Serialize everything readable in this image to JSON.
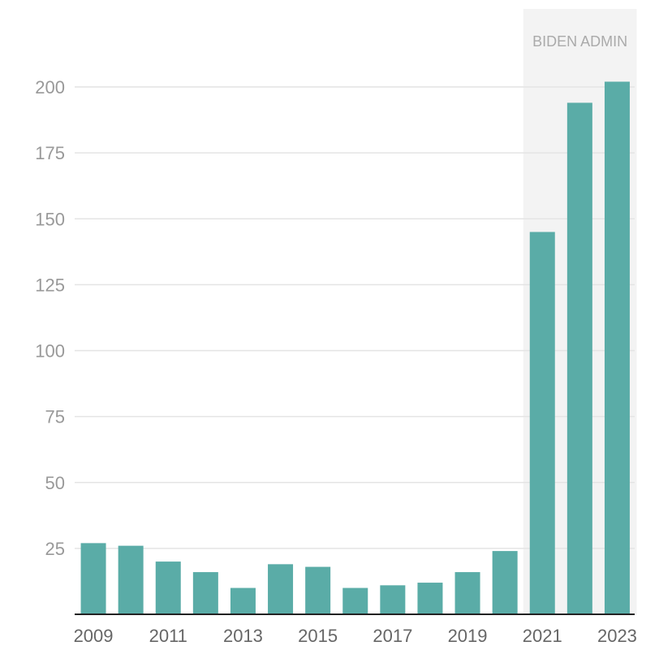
{
  "chart_data": {
    "type": "bar",
    "title": "",
    "xlabel": "",
    "ylabel": "",
    "ylim": [
      0,
      210
    ],
    "y_ticks": [
      25,
      50,
      75,
      100,
      125,
      150,
      175,
      200
    ],
    "categories": [
      "2009",
      "2010",
      "2011",
      "2012",
      "2013",
      "2014",
      "2015",
      "2016",
      "2017",
      "2018",
      "2019",
      "2020",
      "2021",
      "2022",
      "2023"
    ],
    "x_tick_labels": [
      "2009",
      "2011",
      "2013",
      "2015",
      "2017",
      "2019",
      "2021",
      "2023"
    ],
    "values": [
      27,
      26,
      20,
      16,
      10,
      19,
      18,
      10,
      11,
      12,
      16,
      24,
      145,
      194,
      202
    ],
    "grid": true,
    "annotation": {
      "label": "BIDEN ADMIN",
      "from": "2021",
      "to": "2023"
    },
    "colors": {
      "bar": "#5aaca7",
      "shade": "#f3f3f3",
      "grid": "#e4e4e4",
      "axis": "#222222"
    }
  }
}
